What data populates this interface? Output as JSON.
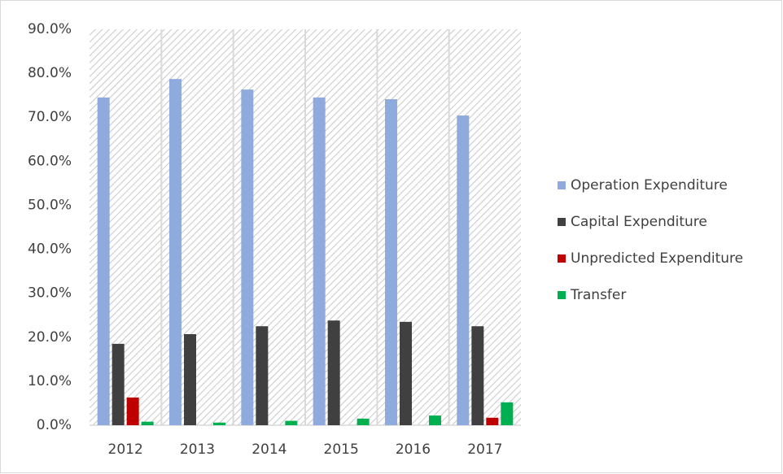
{
  "chart_data": {
    "type": "bar",
    "categories": [
      "2012",
      "2013",
      "2014",
      "2015",
      "2016",
      "2017"
    ],
    "series": [
      {
        "name": "Operation Expenditure",
        "color": "#8faadc",
        "values": [
          74.5,
          78.7,
          76.3,
          74.5,
          74.1,
          70.4
        ]
      },
      {
        "name": "Capital Expenditure",
        "color": "#404040",
        "values": [
          18.5,
          20.7,
          22.5,
          23.8,
          23.5,
          22.5
        ]
      },
      {
        "name": "Unpredicted Expenditure",
        "color": "#c00000",
        "values": [
          6.3,
          0,
          0,
          0,
          0,
          1.7
        ]
      },
      {
        "name": "Transfer",
        "color": "#00b050",
        "values": [
          0.8,
          0.6,
          1.0,
          1.5,
          2.2,
          5.2
        ]
      }
    ],
    "ylim": [
      0,
      90
    ],
    "yticks": [
      {
        "value": 0,
        "label": "0.0%"
      },
      {
        "value": 10,
        "label": "10.0%"
      },
      {
        "value": 20,
        "label": "20.0%"
      },
      {
        "value": 30,
        "label": "30.0%"
      },
      {
        "value": 40,
        "label": "40.0%"
      },
      {
        "value": 50,
        "label": "50.0%"
      },
      {
        "value": 60,
        "label": "60.0%"
      },
      {
        "value": 70,
        "label": "70.0%"
      },
      {
        "value": 80,
        "label": "80.0%"
      },
      {
        "value": 90,
        "label": "90.0%"
      }
    ],
    "grid": false,
    "legend": "right"
  }
}
